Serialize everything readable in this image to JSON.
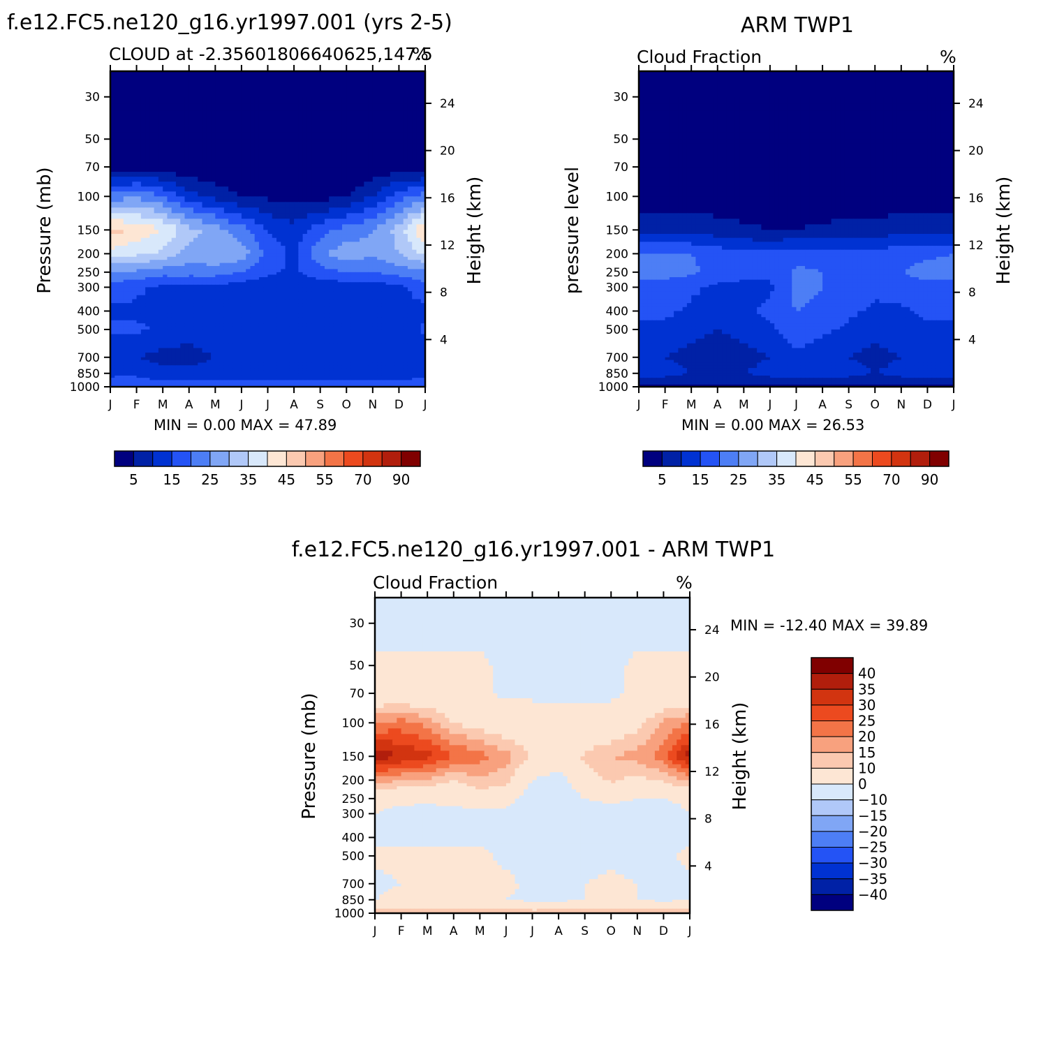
{
  "colors": {
    "abs_scale": [
      "#00007f",
      "#0021a6",
      "#0032d2",
      "#2453f5",
      "#4d7ef5",
      "#80a6f5",
      "#b0c8f8",
      "#d8e8fb",
      "#fde6d4",
      "#fbc9b0",
      "#f8a17e",
      "#f37447",
      "#ec4a1f",
      "#d23410",
      "#b11e0c",
      "#800000"
    ],
    "diff_scale": [
      "#00007f",
      "#0021a6",
      "#0032d2",
      "#2453f5",
      "#4d7ef5",
      "#80a6f5",
      "#b0c8f8",
      "#d8e8fb",
      "#fde6d4",
      "#fbc9b0",
      "#f8a17e",
      "#f37447",
      "#ec4a1f",
      "#d23410",
      "#b11e0c",
      "#800000"
    ]
  },
  "panels": [
    {
      "title": "f.e12.FC5.ne120_g16.yr1997.001 (yrs 2-5)",
      "left_label": "CLOUD at -2.35601806640625,147.5",
      "right_label": "%",
      "ylabel": "Pressure (mb)",
      "ylabel_right": "Height (km)",
      "stats": "MIN =    0.00 MAX =   47.89"
    },
    {
      "title": "ARM TWP1",
      "left_label": "Cloud Fraction",
      "right_label": "%",
      "ylabel": "pressure level",
      "ylabel_right": "Height (km)",
      "stats": "MIN =    0.00 MAX =   26.53"
    },
    {
      "title": "f.e12.FC5.ne120_g16.yr1997.001 - ARM TWP1",
      "left_label": "Cloud Fraction",
      "right_label": "%",
      "ylabel": "Pressure (mb)",
      "ylabel_right": "Height (km)",
      "stats": "MIN = -12.40 MAX =   39.89"
    }
  ],
  "months": [
    "J",
    "F",
    "M",
    "A",
    "M",
    "J",
    "J",
    "A",
    "S",
    "O",
    "N",
    "D",
    "J"
  ],
  "pressure_ticks": [
    "30",
    "50",
    "70",
    "100",
    "150",
    "200",
    "250",
    "300",
    "400",
    "500",
    "700",
    "850",
    "1000"
  ],
  "height_ticks": [
    "24",
    "20",
    "16",
    "12",
    "8",
    "4"
  ],
  "abs_colorbar_labels": [
    "5",
    "15",
    "25",
    "35",
    "45",
    "55",
    "70",
    "90"
  ],
  "diff_colorbar_labels": [
    "40",
    "35",
    "30",
    "25",
    "20",
    "15",
    "10",
    "0",
    "-10",
    "-15",
    "-20",
    "-25",
    "-30",
    "-35",
    "-40"
  ],
  "chart_data": [
    {
      "type": "heatmap",
      "title": "f.e12.FC5.ne120_g16.yr1997.001 (yrs 2-5)",
      "subtitle": "CLOUD at -2.35601806640625,147.5",
      "units": "%",
      "x": [
        "Jan",
        "Feb",
        "Mar",
        "Apr",
        "May",
        "Jun",
        "Jul",
        "Aug",
        "Sep",
        "Oct",
        "Nov",
        "Dec",
        "Jan"
      ],
      "y_pressure_mb": [
        30,
        50,
        70,
        100,
        150,
        200,
        250,
        300,
        400,
        500,
        700,
        850,
        1000
      ],
      "levels": [
        5,
        10,
        15,
        20,
        25,
        30,
        35,
        40,
        45,
        50,
        55,
        60,
        70,
        80,
        90
      ],
      "min": 0.0,
      "max": 47.89,
      "values": [
        [
          0,
          0,
          0,
          0,
          0,
          0,
          0,
          0,
          0,
          0,
          0,
          0,
          0
        ],
        [
          0,
          0,
          0,
          0,
          0,
          0,
          0,
          0,
          0,
          0,
          0,
          0,
          0
        ],
        [
          2,
          3,
          2,
          1,
          1,
          0,
          0,
          0,
          0,
          0,
          1,
          2,
          2
        ],
        [
          22,
          24,
          20,
          12,
          8,
          5,
          4,
          3,
          3,
          5,
          10,
          18,
          22
        ],
        [
          47,
          44,
          40,
          32,
          28,
          22,
          15,
          12,
          18,
          22,
          25,
          32,
          46
        ],
        [
          38,
          36,
          34,
          28,
          30,
          28,
          18,
          14,
          24,
          28,
          26,
          30,
          36
        ],
        [
          24,
          24,
          22,
          22,
          22,
          20,
          16,
          14,
          18,
          20,
          20,
          22,
          24
        ],
        [
          18,
          16,
          14,
          14,
          14,
          12,
          12,
          12,
          12,
          12,
          12,
          14,
          18
        ],
        [
          14,
          14,
          12,
          10,
          12,
          12,
          10,
          10,
          10,
          10,
          10,
          12,
          14
        ],
        [
          16,
          16,
          14,
          12,
          14,
          12,
          12,
          12,
          10,
          10,
          10,
          12,
          16
        ],
        [
          10,
          10,
          8,
          8,
          10,
          12,
          12,
          10,
          10,
          10,
          10,
          10,
          10
        ],
        [
          14,
          14,
          12,
          12,
          12,
          12,
          12,
          12,
          12,
          12,
          12,
          12,
          14
        ],
        [
          18,
          18,
          18,
          18,
          18,
          18,
          18,
          18,
          18,
          18,
          18,
          18,
          18
        ]
      ],
      "xlabel": "",
      "ylabel": "Pressure (mb)",
      "ylabel_right": "Height (km)"
    },
    {
      "type": "heatmap",
      "title": "ARM TWP1",
      "subtitle": "Cloud Fraction",
      "units": "%",
      "x": [
        "Jan",
        "Feb",
        "Mar",
        "Apr",
        "May",
        "Jun",
        "Jul",
        "Aug",
        "Sep",
        "Oct",
        "Nov",
        "Dec",
        "Jan"
      ],
      "y_pressure_mb": [
        30,
        50,
        70,
        100,
        150,
        200,
        250,
        300,
        400,
        500,
        700,
        850,
        1000
      ],
      "levels": [
        5,
        10,
        15,
        20,
        25,
        30,
        35,
        40,
        45,
        50,
        55,
        60,
        70,
        80,
        90
      ],
      "min": 0.0,
      "max": 26.53,
      "values": [
        [
          0,
          0,
          0,
          0,
          0,
          0,
          0,
          0,
          0,
          0,
          0,
          0,
          0
        ],
        [
          0,
          0,
          0,
          0,
          0,
          0,
          0,
          0,
          0,
          0,
          0,
          0,
          0
        ],
        [
          0,
          0,
          0,
          0,
          0,
          0,
          0,
          0,
          0,
          0,
          0,
          0,
          0
        ],
        [
          2,
          2,
          2,
          2,
          1,
          1,
          1,
          1,
          1,
          1,
          2,
          2,
          2
        ],
        [
          8,
          9,
          8,
          7,
          6,
          5,
          5,
          6,
          7,
          7,
          8,
          9,
          8
        ],
        [
          20,
          21,
          20,
          18,
          16,
          16,
          18,
          18,
          17,
          17,
          18,
          19,
          20
        ],
        [
          22,
          22,
          21,
          18,
          16,
          16,
          21,
          20,
          18,
          18,
          20,
          22,
          22
        ],
        [
          18,
          18,
          16,
          14,
          14,
          14,
          22,
          20,
          18,
          16,
          18,
          18,
          18
        ],
        [
          16,
          16,
          14,
          12,
          14,
          16,
          20,
          18,
          16,
          14,
          14,
          16,
          16
        ],
        [
          14,
          14,
          12,
          10,
          12,
          14,
          18,
          16,
          14,
          12,
          14,
          14,
          14
        ],
        [
          12,
          10,
          8,
          6,
          8,
          10,
          14,
          12,
          10,
          8,
          10,
          12,
          12
        ],
        [
          14,
          12,
          10,
          8,
          10,
          12,
          14,
          14,
          12,
          10,
          12,
          14,
          14
        ],
        [
          4,
          4,
          4,
          4,
          4,
          4,
          4,
          4,
          4,
          4,
          4,
          4,
          4
        ]
      ],
      "xlabel": "",
      "ylabel": "pressure level",
      "ylabel_right": "Height (km)"
    },
    {
      "type": "heatmap",
      "title": "f.e12.FC5.ne120_g16.yr1997.001 - ARM TWP1",
      "subtitle": "Cloud Fraction",
      "units": "%",
      "x": [
        "Jan",
        "Feb",
        "Mar",
        "Apr",
        "May",
        "Jun",
        "Jul",
        "Aug",
        "Sep",
        "Oct",
        "Nov",
        "Dec",
        "Jan"
      ],
      "y_pressure_mb": [
        30,
        50,
        70,
        100,
        150,
        200,
        250,
        300,
        400,
        500,
        700,
        850,
        1000
      ],
      "levels": [
        -40,
        -35,
        -30,
        -25,
        -20,
        -15,
        -10,
        0,
        10,
        15,
        20,
        25,
        30,
        35,
        40
      ],
      "min": -12.4,
      "max": 39.89,
      "values": [
        [
          -2,
          -2,
          -2,
          -2,
          -2,
          -2,
          -2,
          -2,
          -2,
          -2,
          -2,
          -2,
          -2
        ],
        [
          1,
          1,
          1,
          1,
          1,
          -1,
          -1,
          -1,
          -1,
          -1,
          1,
          1,
          1
        ],
        [
          2,
          3,
          2,
          1,
          1,
          -1,
          -1,
          -1,
          -1,
          -1,
          1,
          2,
          2
        ],
        [
          20,
          22,
          18,
          10,
          7,
          4,
          3,
          2,
          2,
          3,
          8,
          16,
          20
        ],
        [
          39,
          35,
          32,
          25,
          22,
          17,
          10,
          6,
          11,
          15,
          17,
          23,
          38
        ],
        [
          18,
          15,
          14,
          10,
          14,
          12,
          0,
          -4,
          7,
          11,
          8,
          11,
          16
        ],
        [
          2,
          2,
          1,
          4,
          6,
          4,
          -5,
          -6,
          0,
          2,
          0,
          0,
          2
        ],
        [
          0,
          -2,
          -2,
          -4,
          -2,
          -2,
          -10,
          -8,
          -6,
          -4,
          -6,
          -4,
          0
        ],
        [
          -2,
          -2,
          -2,
          -2,
          -2,
          -4,
          -10,
          -8,
          -6,
          -4,
          -4,
          -4,
          -2
        ],
        [
          2,
          2,
          2,
          2,
          2,
          -2,
          -6,
          -4,
          -4,
          -2,
          -4,
          -2,
          2
        ],
        [
          -2,
          0,
          0,
          2,
          2,
          2,
          -2,
          -2,
          0,
          2,
          0,
          -2,
          -2
        ],
        [
          0,
          2,
          2,
          4,
          2,
          0,
          -2,
          -2,
          0,
          2,
          0,
          -2,
          0
        ],
        [
          14,
          14,
          14,
          14,
          14,
          14,
          14,
          14,
          14,
          14,
          14,
          14,
          14
        ]
      ],
      "xlabel": "",
      "ylabel": "Pressure (mb)",
      "ylabel_right": "Height (km)"
    }
  ]
}
